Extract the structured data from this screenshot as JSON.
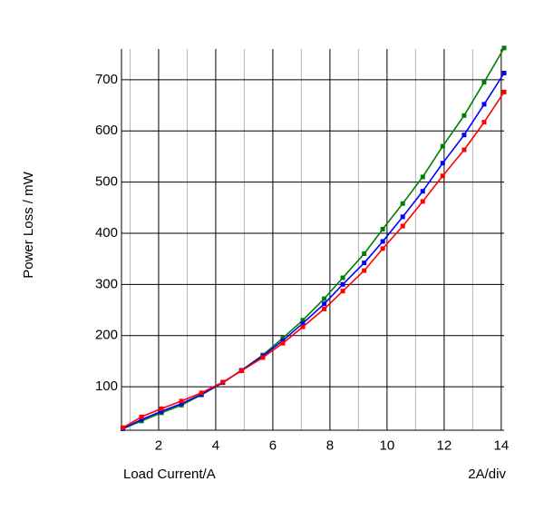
{
  "chart_data": {
    "type": "line",
    "title": "",
    "xlabel": "Load Current/A",
    "ylabel": "Power Loss / mW",
    "scale_note": "2A/div",
    "xlim": [
      0.7,
      14.1
    ],
    "ylim": [
      15,
      760
    ],
    "x_major_ticks": [
      2,
      4,
      6,
      8,
      10,
      12,
      14
    ],
    "x_minor_ticks": [
      1,
      3,
      5,
      7,
      9,
      11,
      13
    ],
    "y_ticks": [
      100,
      200,
      300,
      400,
      500,
      600,
      700
    ],
    "grid": true,
    "legend": "none",
    "series": [
      {
        "color": "#008000",
        "x": [
          0.75,
          1.4,
          2.1,
          2.8,
          3.5,
          4.25,
          4.9,
          5.65,
          6.35,
          7.05,
          7.8,
          8.45,
          9.2,
          9.85,
          10.55,
          11.25,
          11.95,
          12.7,
          13.4,
          14.1
        ],
        "y": [
          18,
          33,
          49,
          64,
          84,
          108,
          132,
          162,
          195,
          230,
          272,
          313,
          360,
          408,
          458,
          510,
          570,
          630,
          695,
          762
        ]
      },
      {
        "color": "#0000ff",
        "x": [
          0.75,
          1.4,
          2.1,
          2.8,
          3.5,
          4.25,
          4.9,
          5.65,
          6.35,
          7.05,
          7.8,
          8.45,
          9.2,
          9.85,
          10.55,
          11.25,
          11.95,
          12.7,
          13.4,
          14.1
        ],
        "y": [
          18,
          36,
          52,
          67,
          85,
          108,
          132,
          160,
          190,
          224,
          262,
          300,
          342,
          384,
          432,
          482,
          537,
          592,
          652,
          713
        ]
      },
      {
        "color": "#ff0000",
        "x": [
          0.75,
          1.4,
          2.1,
          2.8,
          3.5,
          4.25,
          4.9,
          5.65,
          6.35,
          7.05,
          7.8,
          8.45,
          9.2,
          9.85,
          10.55,
          11.25,
          11.95,
          12.7,
          13.4,
          14.1
        ],
        "y": [
          20,
          41,
          57,
          72,
          88,
          109,
          131,
          157,
          185,
          217,
          252,
          287,
          327,
          370,
          414,
          462,
          512,
          563,
          617,
          676
        ]
      }
    ]
  }
}
